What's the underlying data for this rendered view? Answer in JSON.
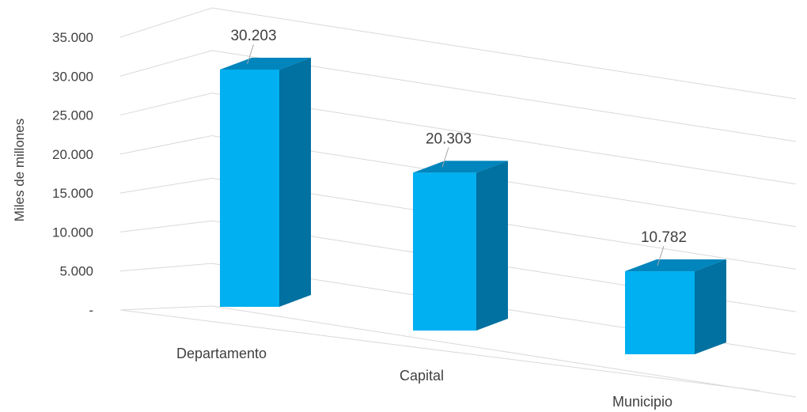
{
  "chart_data": {
    "type": "bar",
    "style": "3d-column",
    "categories": [
      "Departamento",
      "Capital",
      "Municipio"
    ],
    "values": [
      30203,
      20303,
      10782
    ],
    "data_labels": [
      "30.203",
      "20.303",
      "10.782"
    ],
    "ylabel": "Miles de millones",
    "ylim": [
      0,
      35000
    ],
    "yticks": [
      0,
      5000,
      10000,
      15000,
      20000,
      25000,
      30000,
      35000
    ],
    "ytick_labels": [
      "-",
      "5.000",
      "10.000",
      "15.000",
      "20.000",
      "25.000",
      "30.000",
      "35.000"
    ],
    "grid": true,
    "legend": "none",
    "colors": {
      "front": "#00b0f0",
      "side": "#0071a0",
      "top": "#0085bd",
      "grid": "#d9d9d9",
      "text": "#404040"
    }
  }
}
